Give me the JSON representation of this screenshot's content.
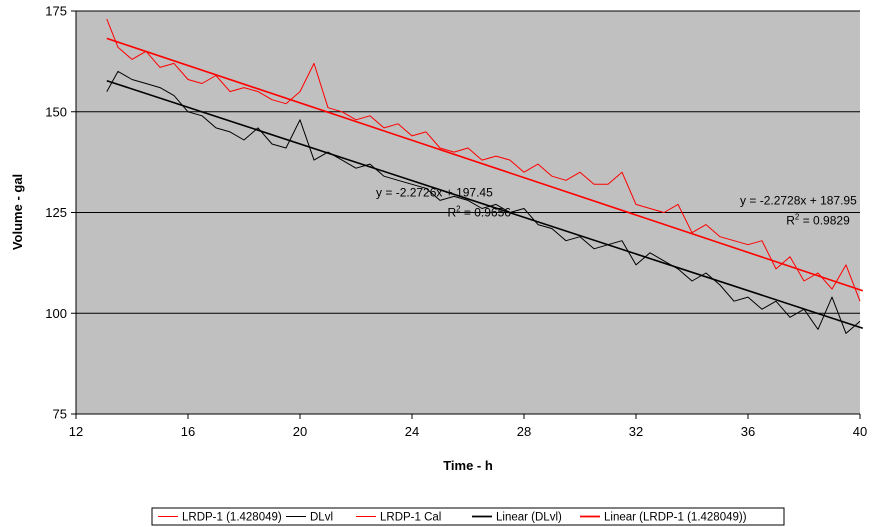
{
  "chart_data": {
    "type": "line",
    "title": "",
    "xlabel": "Time - h",
    "ylabel": "Volume - gal",
    "xlim": [
      12,
      40
    ],
    "ylim": [
      75,
      175
    ],
    "xticks": [
      12,
      16,
      20,
      24,
      28,
      32,
      36,
      40
    ],
    "yticks": [
      75,
      100,
      125,
      150,
      175
    ],
    "grid": "horizontal major gridlines",
    "plot_background": "#c0c0c0",
    "legend_position": "bottom",
    "series": [
      {
        "name": "LRDP-1 (1.428049)",
        "color": "#ff0000",
        "x": [
          13.1,
          13.5,
          14.0,
          14.5,
          15.0,
          15.5,
          16.0,
          16.5,
          17.0,
          17.5,
          18.0,
          18.5,
          19.0,
          19.5,
          20.0,
          20.5,
          21.0,
          21.5,
          22.0,
          22.5,
          23.0,
          23.5,
          24.0,
          24.5,
          25.0,
          25.5,
          26.0,
          26.5,
          27.0,
          27.5,
          28.0,
          28.5,
          29.0,
          29.5,
          30.0,
          30.5,
          31.0,
          31.5,
          32.0,
          32.5,
          33.0,
          33.5,
          34.0,
          34.5,
          35.0,
          35.5,
          36.0,
          36.5,
          37.0,
          37.5,
          38.0,
          38.5,
          39.0,
          39.5,
          40.0
        ],
        "values": [
          173,
          166,
          163,
          165,
          161,
          162,
          158,
          157,
          159,
          155,
          156,
          155,
          153,
          152,
          155,
          162,
          151,
          150,
          148,
          149,
          146,
          147,
          144,
          145,
          141,
          140,
          141,
          138,
          139,
          138,
          135,
          137,
          134,
          133,
          135,
          132,
          132,
          135,
          127,
          126,
          125,
          127,
          120,
          122,
          119,
          118,
          117,
          118,
          111,
          114,
          108,
          110,
          106,
          112,
          103
        ]
      },
      {
        "name": "DLvl",
        "color": "#000000",
        "x": [
          13.1,
          13.5,
          14.0,
          14.5,
          15.0,
          15.5,
          16.0,
          16.5,
          17.0,
          17.5,
          18.0,
          18.5,
          19.0,
          19.5,
          20.0,
          20.5,
          21.0,
          21.5,
          22.0,
          22.5,
          23.0,
          23.5,
          24.0,
          24.5,
          25.0,
          25.5,
          26.0,
          26.5,
          27.0,
          27.5,
          28.0,
          28.5,
          29.0,
          29.5,
          30.0,
          30.5,
          31.0,
          31.5,
          32.0,
          32.5,
          33.0,
          33.5,
          34.0,
          34.5,
          35.0,
          35.5,
          36.0,
          36.5,
          37.0,
          37.5,
          38.0,
          38.5,
          39.0,
          39.5,
          40.0
        ],
        "values": [
          155,
          160,
          158,
          157,
          156,
          154,
          150,
          149,
          146,
          145,
          143,
          146,
          142,
          141,
          148,
          138,
          140,
          138,
          136,
          137,
          134,
          133,
          132,
          131,
          128,
          129,
          128,
          126,
          127,
          125,
          126,
          122,
          121,
          118,
          119,
          116,
          117,
          118,
          112,
          115,
          113,
          111,
          108,
          110,
          107,
          103,
          104,
          101,
          103,
          99,
          101,
          96,
          104,
          95,
          98
        ]
      },
      {
        "name": "LRDP-1 Cal",
        "color": "#ff0000",
        "x": [],
        "values": []
      },
      {
        "name": "Linear (DLvl)",
        "color": "#000000",
        "type": "trendline",
        "x": [
          13.1,
          40.1
        ],
        "values": [
          157.7,
          96.3
        ]
      },
      {
        "name": "Linear (LRDP-1 (1.428049))",
        "color": "#ff0000",
        "type": "trendline",
        "x": [
          13.1,
          40.1
        ],
        "values": [
          168.2,
          105.6
        ]
      }
    ],
    "annotations": [
      {
        "text": "y = -2.2726x + 197.45",
        "at": [
          24.8,
          129
        ]
      },
      {
        "text": "R",
        "sup": "2",
        "rest": " = 0.9656",
        "at": [
          26.4,
          124
        ]
      },
      {
        "text": "y = -2.2728x + 187.95",
        "at": [
          37.8,
          127
        ]
      },
      {
        "text": "R",
        "sup": "2",
        "rest": " = 0.9829",
        "at": [
          38.5,
          122
        ]
      }
    ]
  }
}
